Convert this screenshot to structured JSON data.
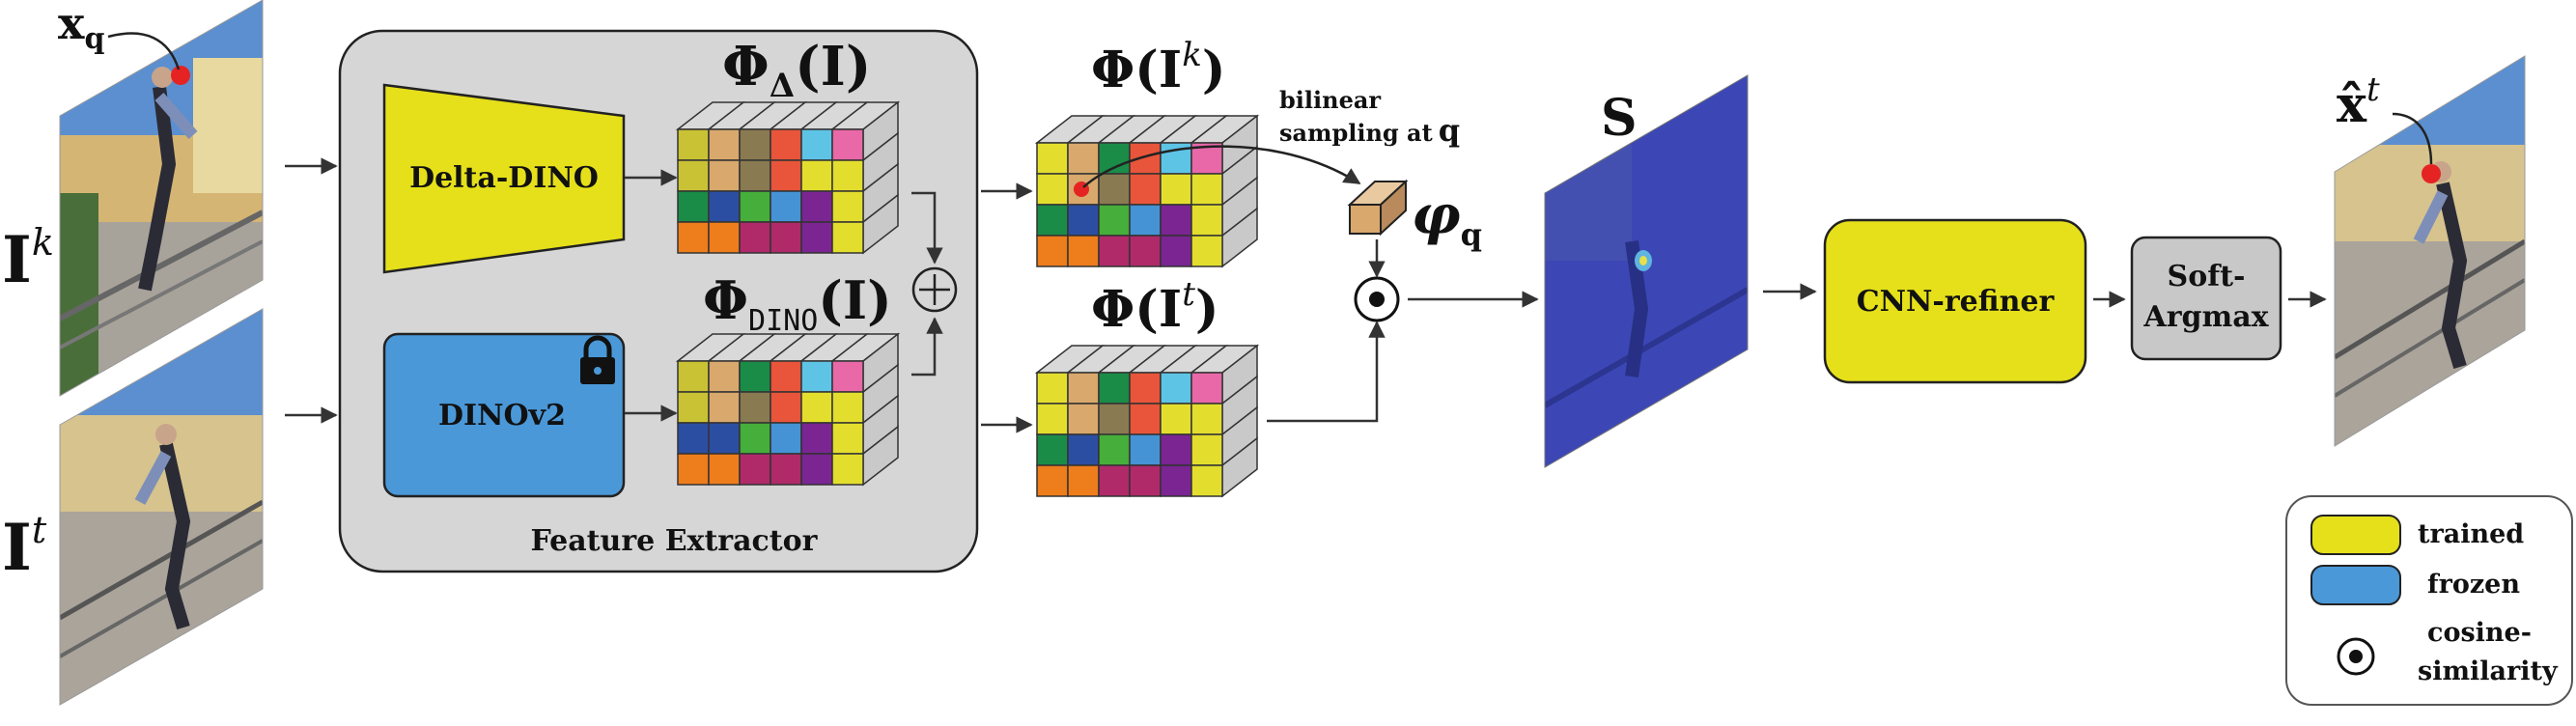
{
  "inputs": {
    "query_label": "x",
    "query_sub": "q",
    "frame_k_label": "I",
    "frame_k_sup": "k",
    "frame_t_label": "I",
    "frame_t_sup": "t"
  },
  "extractor": {
    "caption": "Feature Extractor",
    "delta_dino": "Delta-DINO",
    "dinov2": "DINOv2",
    "phi_delta": "Φ",
    "phi_delta_sub": "Δ",
    "phi_delta_arg": "(I)",
    "phi_dino": "Φ",
    "phi_dino_sub": "DINO",
    "phi_dino_arg": "(I)",
    "sum_symbol": "⊕"
  },
  "features": {
    "phi_k": "Φ(I",
    "phi_k_sup": "k",
    "phi_t": "Φ(I",
    "phi_t_sup": "t",
    "close_paren": ")"
  },
  "sampling": {
    "line1": "bilinear",
    "line2": "sampling at",
    "q": "q",
    "varphi": "φ",
    "varphi_sub": "q"
  },
  "similarity": {
    "label": "S"
  },
  "refiner": {
    "cnn": "CNN-refiner",
    "soft_line1": "Soft-",
    "soft_line2": "Argmax"
  },
  "output": {
    "label": "x̂",
    "sup": "t"
  },
  "legend": {
    "trained": "trained",
    "frozen": "frozen",
    "cosine_line1": "cosine-",
    "cosine_line2": "similarity"
  },
  "palette": {
    "trained": "#e5e01a",
    "frozen": "#4a98d8",
    "panel": "#d6d6d6",
    "soft_box": "#c8c8c8",
    "heatmap": "#3c47b5",
    "query_dot": "#e52323"
  },
  "grid_colors": {
    "delta": [
      [
        "#c9c234",
        "#d9a86c",
        "#8a7a52",
        "#e8553a",
        "#5ec4e6",
        "#e868a8"
      ],
      [
        "#c9c234",
        "#d9a86c",
        "#8a7a52",
        "#e8553a",
        "#e3de2e",
        "#e3de2e"
      ],
      [
        "#1a8c48",
        "#2c4ea2",
        "#46ae3a",
        "#4593d5",
        "#7a2592",
        "#e3de2e"
      ],
      [
        "#ee7d1c",
        "#ee7d1c",
        "#b02a6a",
        "#b02a6a",
        "#7a2592",
        "#e3de2e"
      ]
    ],
    "dino": [
      [
        "#c9c234",
        "#d9a86c",
        "#1a8c48",
        "#e8553a",
        "#5ec4e6",
        "#e868a8"
      ],
      [
        "#c9c234",
        "#d9a86c",
        "#8a7a52",
        "#e8553a",
        "#e3de2e",
        "#e3de2e"
      ],
      [
        "#2c4ea2",
        "#2c4ea2",
        "#46ae3a",
        "#4593d5",
        "#7a2592",
        "#e3de2e"
      ],
      [
        "#ee7d1c",
        "#ee7d1c",
        "#b02a6a",
        "#b02a6a",
        "#7a2592",
        "#e3de2e"
      ]
    ],
    "phi_k": [
      [
        "#e3de2e",
        "#d9a86c",
        "#1a8c48",
        "#e8553a",
        "#5ec4e6",
        "#e868a8"
      ],
      [
        "#e3de2e",
        "#d9a86c",
        "#8a7a52",
        "#e8553a",
        "#e3de2e",
        "#e3de2e"
      ],
      [
        "#1a8c48",
        "#2c4ea2",
        "#46ae3a",
        "#4593d5",
        "#7a2592",
        "#e3de2e"
      ],
      [
        "#ee7d1c",
        "#ee7d1c",
        "#b02a6a",
        "#b02a6a",
        "#7a2592",
        "#e3de2e"
      ]
    ],
    "phi_t": [
      [
        "#e3de2e",
        "#d9a86c",
        "#1a8c48",
        "#e8553a",
        "#5ec4e6",
        "#e868a8"
      ],
      [
        "#e3de2e",
        "#d9a86c",
        "#8a7a52",
        "#e8553a",
        "#e3de2e",
        "#e3de2e"
      ],
      [
        "#1a8c48",
        "#2c4ea2",
        "#46ae3a",
        "#4593d5",
        "#7a2592",
        "#e3de2e"
      ],
      [
        "#ee7d1c",
        "#ee7d1c",
        "#b02a6a",
        "#b02a6a",
        "#7a2592",
        "#e3de2e"
      ]
    ]
  }
}
